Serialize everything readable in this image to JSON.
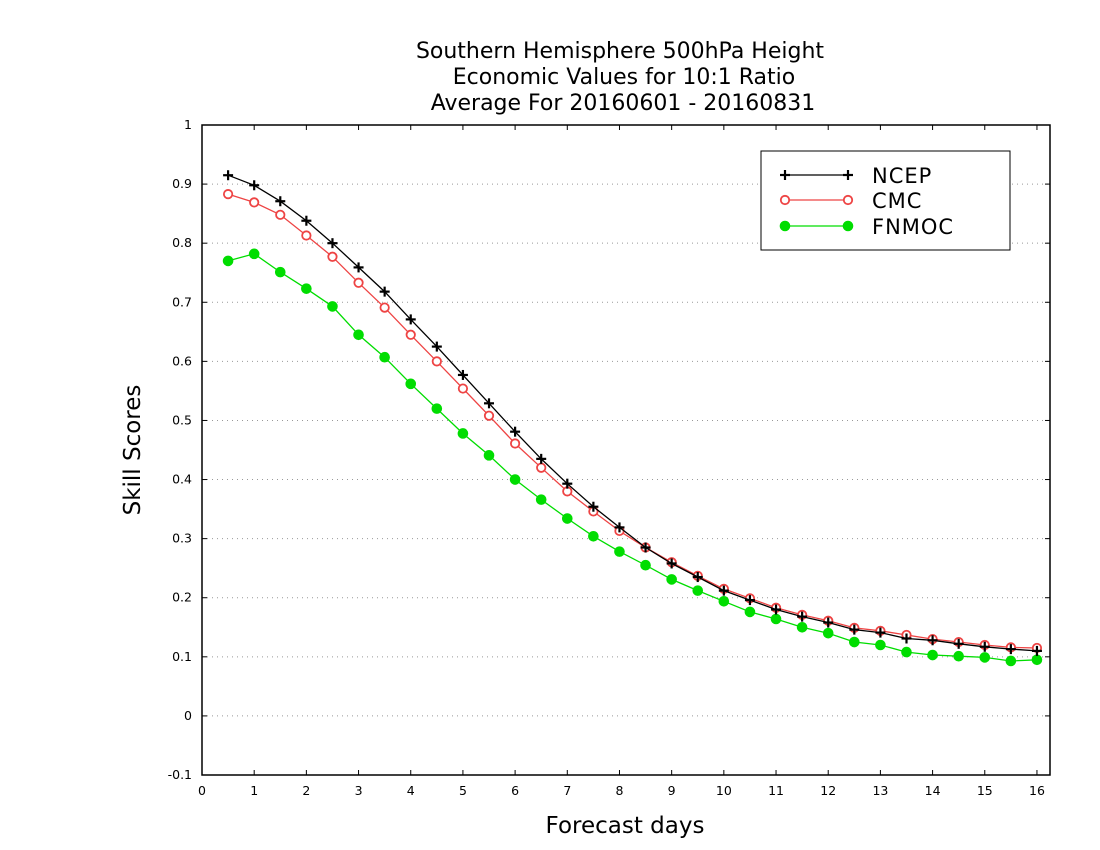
{
  "chart_data": {
    "type": "line",
    "title_lines": [
      "Southern Hemisphere 500hPa Height",
      "Economic Values for 10:1 Ratio",
      "Average For 20160601 - 20160831"
    ],
    "xlabel": "Forecast days",
    "ylabel": "Skill Scores",
    "xlim": [
      0,
      16.25
    ],
    "ylim": [
      -0.1,
      1
    ],
    "x_ticks": [
      "0",
      "1",
      "2",
      "3",
      "4",
      "5",
      "6",
      "7",
      "8",
      "9",
      "10",
      "11",
      "12",
      "13",
      "14",
      "15",
      "16"
    ],
    "y_ticks": [
      "-0.1",
      "0",
      "0.1",
      "0.2",
      "0.3",
      "0.4",
      "0.5",
      "0.6",
      "0.7",
      "0.8",
      "0.9",
      "1"
    ],
    "grid": "horizontal dotted",
    "legend_position": "top-right",
    "x": [
      0.5,
      1,
      1.5,
      2,
      2.5,
      3,
      3.5,
      4,
      4.5,
      5,
      5.5,
      6,
      6.5,
      7,
      7.5,
      8,
      8.5,
      9,
      9.5,
      10,
      10.5,
      11,
      11.5,
      12,
      12.5,
      13,
      13.5,
      14,
      14.5,
      15,
      15.5,
      16
    ],
    "series": [
      {
        "name": "NCEP",
        "color": "#000000",
        "marker": "plus",
        "values": [
          0.915,
          0.898,
          0.871,
          0.838,
          0.8,
          0.759,
          0.718,
          0.671,
          0.625,
          0.577,
          0.529,
          0.481,
          0.435,
          0.393,
          0.354,
          0.319,
          0.285,
          0.258,
          0.235,
          0.212,
          0.196,
          0.18,
          0.168,
          0.158,
          0.146,
          0.141,
          0.131,
          0.128,
          0.122,
          0.117,
          0.113,
          0.11
        ]
      },
      {
        "name": "CMC",
        "color": "#ee4444",
        "marker": "open-circle",
        "values": [
          0.883,
          0.869,
          0.848,
          0.813,
          0.777,
          0.733,
          0.691,
          0.645,
          0.6,
          0.554,
          0.508,
          0.461,
          0.42,
          0.38,
          0.346,
          0.313,
          0.285,
          0.26,
          0.237,
          0.215,
          0.199,
          0.183,
          0.171,
          0.161,
          0.149,
          0.144,
          0.137,
          0.13,
          0.125,
          0.12,
          0.116,
          0.115
        ]
      },
      {
        "name": "FNMOC",
        "color": "#00dd00",
        "marker": "filled-circle",
        "values": [
          0.77,
          0.782,
          0.751,
          0.723,
          0.693,
          0.645,
          0.607,
          0.562,
          0.52,
          0.478,
          0.441,
          0.4,
          0.366,
          0.334,
          0.304,
          0.278,
          0.255,
          0.231,
          0.212,
          0.194,
          0.176,
          0.164,
          0.15,
          0.14,
          0.125,
          0.12,
          0.108,
          0.103,
          0.101,
          0.099,
          0.093,
          0.095
        ]
      }
    ]
  }
}
